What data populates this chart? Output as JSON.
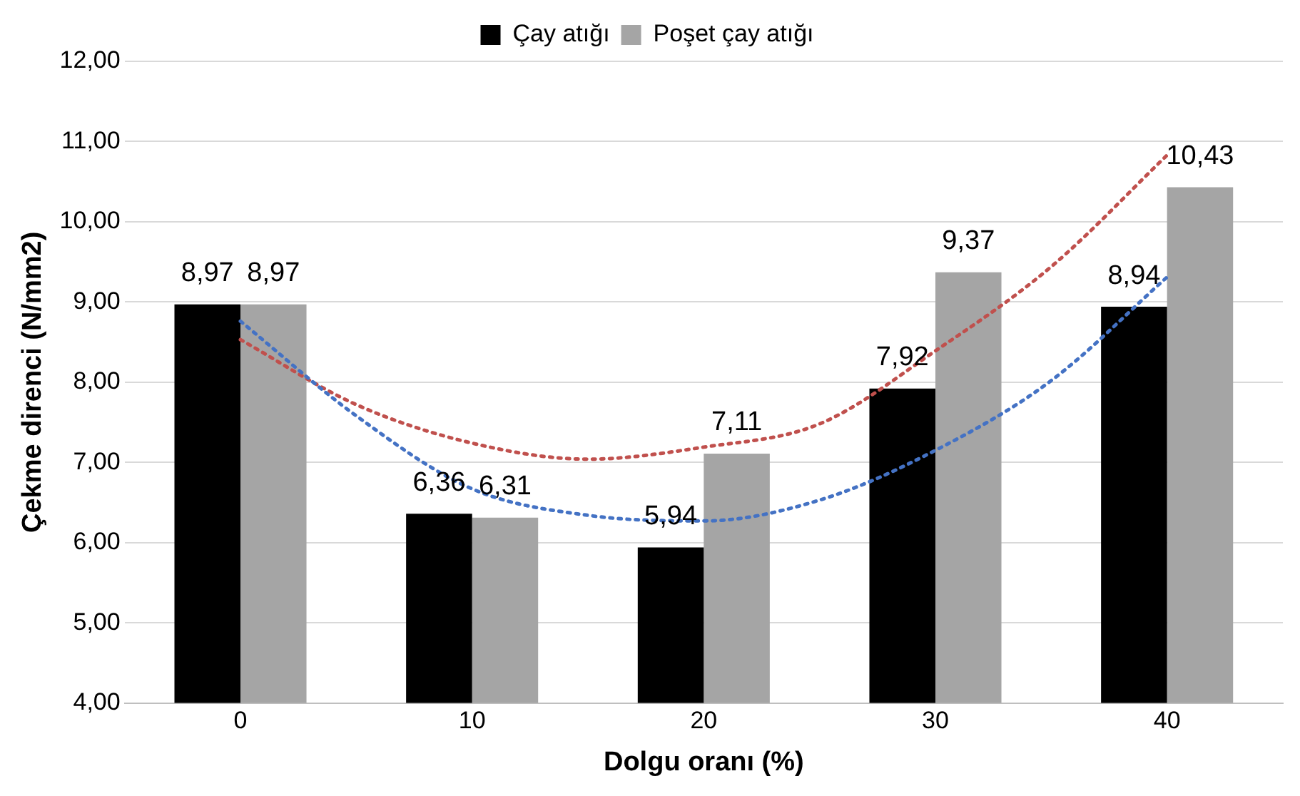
{
  "chart_data": {
    "type": "bar",
    "xlabel": "Dolgu oranı (%)",
    "ylabel": "Çekme direnci (N/mm2)",
    "x": [
      0,
      10,
      20,
      30,
      40
    ],
    "xlim": [
      -5,
      45
    ],
    "xticks": [
      0,
      10,
      20,
      30,
      40
    ],
    "ylim": [
      4,
      12
    ],
    "yticks": [
      {
        "value": 4,
        "label": "4,00"
      },
      {
        "value": 5,
        "label": "5,00"
      },
      {
        "value": 6,
        "label": "6,00"
      },
      {
        "value": 7,
        "label": "7,00"
      },
      {
        "value": 8,
        "label": "8,00"
      },
      {
        "value": 9,
        "label": "9,00"
      },
      {
        "value": 10,
        "label": "10,00"
      },
      {
        "value": 11,
        "label": "11,00"
      },
      {
        "value": 12,
        "label": "12,00"
      }
    ],
    "grid": "y",
    "legend": "top",
    "series": [
      {
        "name": "Çay atığı",
        "color": "#000000",
        "values": [
          8.97,
          6.36,
          5.94,
          7.92,
          8.94
        ],
        "value_labels": [
          "8,97",
          "6,36",
          "5,94",
          "7,92",
          "8,94"
        ]
      },
      {
        "name": "Poşet çay atığı",
        "color": "#a5a5a5",
        "values": [
          8.97,
          6.31,
          7.11,
          9.37,
          10.43
        ],
        "value_labels": [
          "8,97",
          "6,31",
          "7,11",
          "9,37",
          "10,43"
        ]
      },
      {
        "type": "line",
        "color": "#4472c4",
        "line_style": "dotted",
        "x": [
          0,
          5,
          10,
          15,
          20,
          25,
          30,
          35,
          40
        ],
        "values": [
          8.76,
          7.58,
          6.67,
          6.34,
          6.27,
          6.53,
          7.15,
          8.02,
          9.31
        ]
      },
      {
        "type": "line",
        "color": "#c0504d",
        "line_style": "dotted",
        "x": [
          0,
          5,
          10,
          15,
          20,
          25,
          30,
          35,
          40
        ],
        "values": [
          8.53,
          7.72,
          7.24,
          7.04,
          7.19,
          7.48,
          8.39,
          9.44,
          10.83
        ]
      }
    ]
  }
}
